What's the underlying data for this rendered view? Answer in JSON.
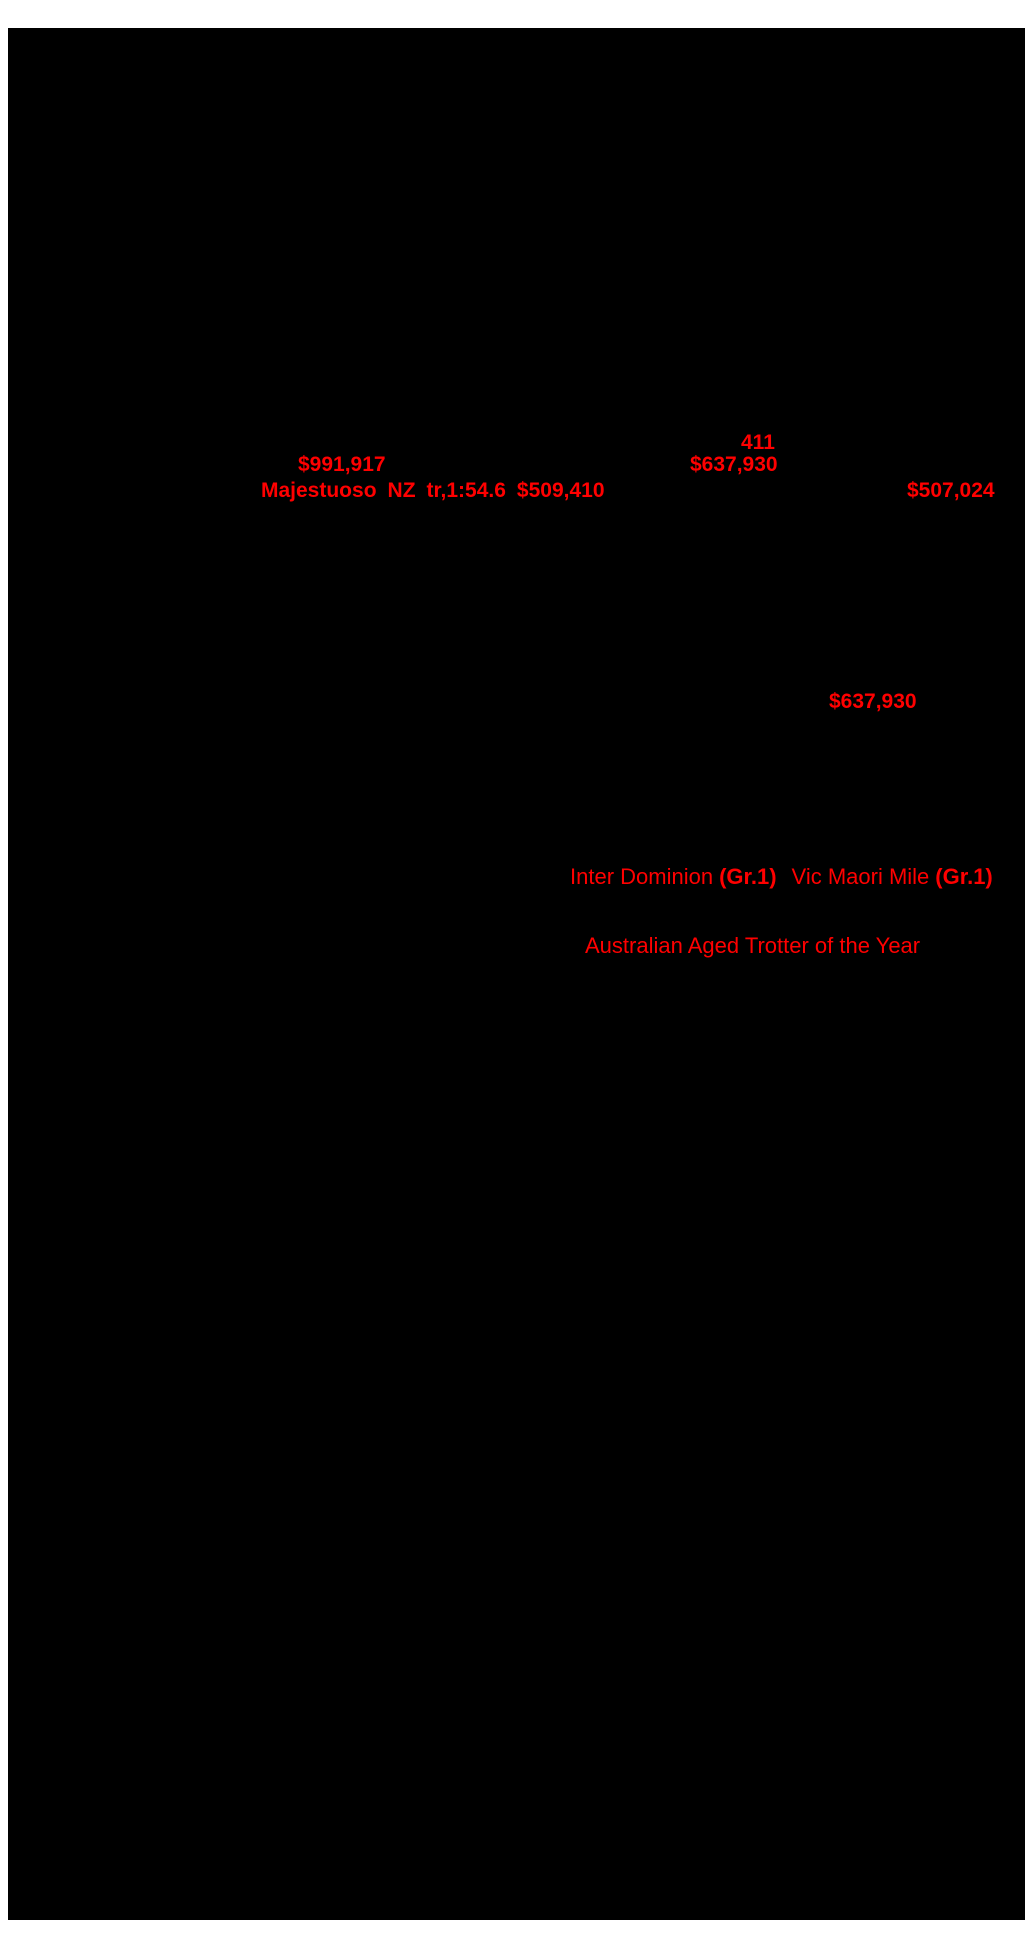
{
  "page": {
    "colors": {
      "highlight_red": "#ff0000",
      "canvas_black": "#000000",
      "margin_white": "#ffffff"
    }
  },
  "pedigree": {
    "stats": {
      "starts": "411",
      "earnings_left": "$991,917",
      "earnings_right": "$637,930",
      "earnings_far_right": "$507,024",
      "earnings_mid_page": "$637,930"
    },
    "sire": {
      "name": "Majestuoso",
      "country": "NZ",
      "record": "tr,1:54.6",
      "earnings": "$509,410"
    },
    "races": {
      "race_1_name": "Inter Dominion",
      "race_1_group": "(Gr.1)",
      "race_2_name": "Vic Maori Mile",
      "race_2_group": "(Gr.1)"
    },
    "award": "Australian Aged Trotter of the Year"
  }
}
